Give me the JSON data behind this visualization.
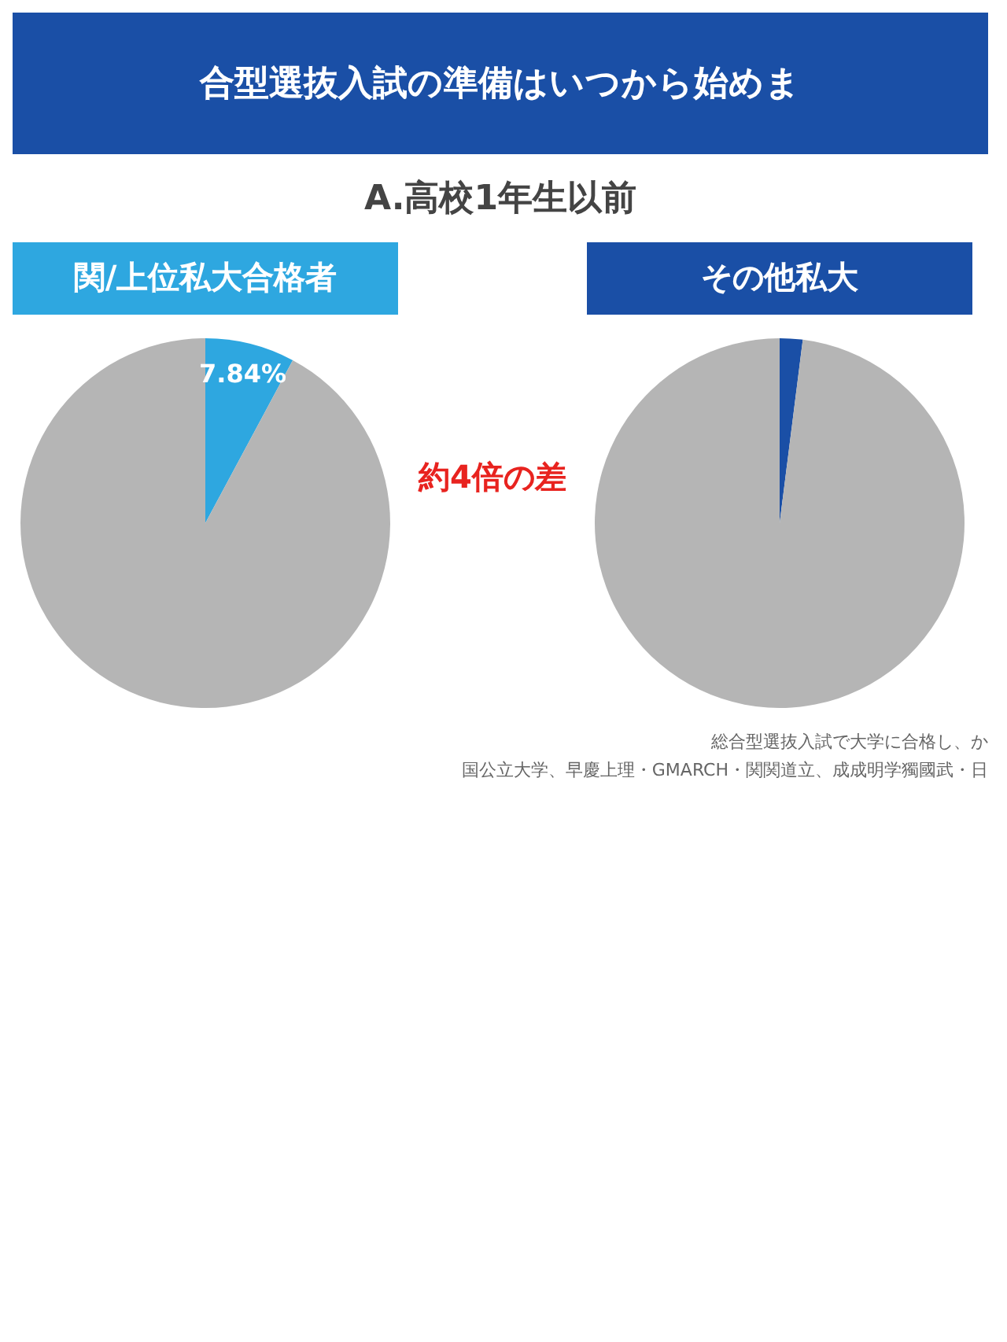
{
  "chart_data": [
    {
      "type": "other",
      "title": "合型選抜入試の準備はいつから始めま",
      "subtitle": "A.高校1年生以前",
      "annotations": [
        "約4倍の差",
        "総合型選抜入試で大学に合格し、か",
        "国公立大学、早慶上理・GMARCH・関関道立、成成明学獨國武・日"
      ]
    },
    {
      "type": "pie",
      "title": "関/上位私大合格者",
      "categories": [
        null,
        null
      ],
      "values": [
        7.84,
        92.16
      ],
      "colors": [
        "#2ea7e0",
        "#b5b5b5"
      ],
      "value_labels": [
        "7.84%",
        null
      ]
    },
    {
      "type": "pie",
      "title": "その他私大",
      "categories": [
        null,
        null
      ],
      "values": [
        2,
        98
      ],
      "colors": [
        "#1a4fa6",
        "#b5b5b5"
      ]
    }
  ]
}
